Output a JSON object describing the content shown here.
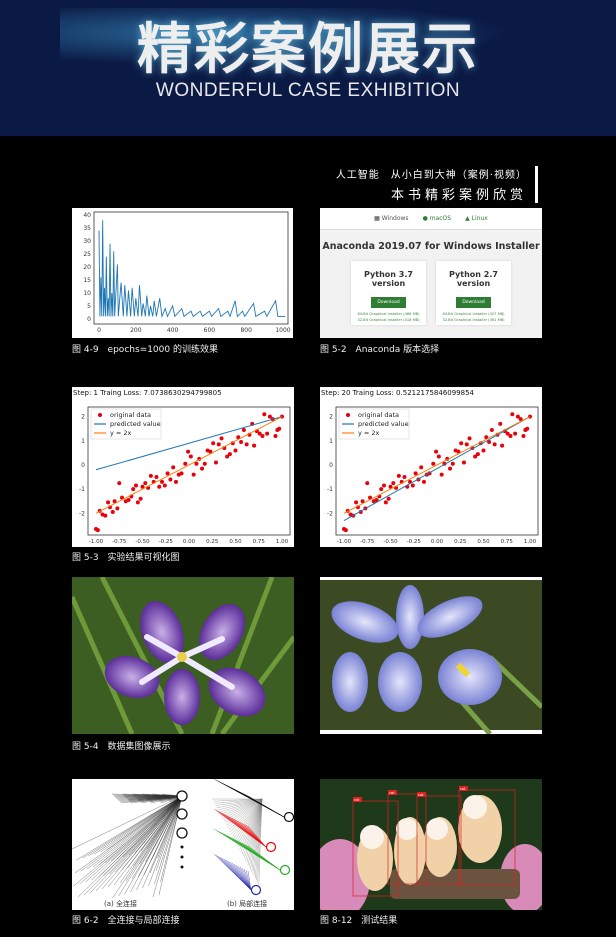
{
  "header": {
    "title": "精彩案例展示",
    "subtitle": "WONDERFUL CASE EXHIBITION",
    "bg_color": "#0b1a45"
  },
  "tagline": {
    "line1": "人工智能　从小白到大神（案例·视频）",
    "line2": "本书精彩案例欣赏"
  },
  "figures": [
    {
      "caption": "图 4-9　epochs=1000 的训练效果"
    },
    {
      "caption": "图 5-2　Anaconda 版本选择"
    },
    {
      "caption": "图 5-3　实验结果可视化图"
    },
    {
      "caption": "图 5-4　数据集图像展示"
    },
    {
      "caption": "图 6-2　全连接与局部连接",
      "sub_a": "(a) 全连接",
      "sub_b": "(b) 局部连接"
    },
    {
      "caption": "图 8-12　测试结果",
      "box_label": "cat"
    }
  ],
  "anaconda": {
    "tabs": [
      {
        "icon": "windows-icon",
        "label": "Windows"
      },
      {
        "icon": "apple-icon",
        "label": "macOS"
      },
      {
        "icon": "linux-icon",
        "label": "Linux"
      }
    ],
    "title": "Anaconda 2019.07 for Windows Installer",
    "cards": [
      {
        "title": "Python 3.7 version",
        "button": "Download",
        "links": [
          "64-Bit Graphical Installer (486 MB)",
          "32-Bit Graphical Installer (418 MB)"
        ]
      },
      {
        "title": "Python 2.7 version",
        "button": "Download",
        "links": [
          "64-Bit Graphical Installer (427 MB)",
          "32-Bit Graphical Installer (361 MB)"
        ]
      }
    ],
    "accent": "#2e7d32"
  },
  "chart_data": [
    {
      "type": "line",
      "xlim": [
        0,
        1000
      ],
      "ylim": [
        0,
        40
      ],
      "xticks": [
        0,
        200,
        400,
        600,
        800,
        1000
      ],
      "yticks": [
        0,
        5,
        10,
        15,
        20,
        25,
        30,
        35,
        40
      ],
      "color": "#1f77b4",
      "x": [
        0,
        10,
        20,
        30,
        40,
        50,
        60,
        70,
        80,
        100,
        120,
        140,
        160,
        180,
        200,
        220,
        240,
        260,
        280,
        300,
        330,
        360,
        400,
        450,
        500,
        550,
        600,
        650,
        700,
        740,
        780,
        840,
        900,
        960,
        1000
      ],
      "y": [
        34,
        16,
        38,
        12,
        24,
        8,
        29,
        10,
        26,
        21,
        14,
        13,
        11,
        12,
        8,
        13,
        6,
        9,
        5,
        7,
        8,
        4,
        5,
        4,
        3,
        3,
        3,
        4,
        3,
        7,
        3,
        6,
        3,
        7,
        1
      ]
    },
    {
      "type": "scatter",
      "title": "Step:  1 Traing Loss:  7.073863029479980​5",
      "xlim": [
        -1,
        1
      ],
      "ylim": [
        -2.9,
        2.4
      ],
      "xticks": [
        "-1.00",
        "-0.75",
        "-0.50",
        "-0.25",
        "0.00",
        "0.25",
        "0.50",
        "0.75",
        "1.00"
      ],
      "yticks": [
        -2,
        -1,
        0,
        1,
        2
      ],
      "legend": [
        "original data",
        "predicted value",
        "y = 2x"
      ],
      "legend_position": "top-left",
      "predicted": [
        [
          -1,
          -0.2
        ],
        [
          1,
          2.0
        ]
      ],
      "reference": [
        [
          -1,
          -2
        ],
        [
          1,
          2
        ]
      ]
    },
    {
      "type": "scatter",
      "title": "Step:  20 Traing Loss:  0.5212175846099854",
      "xlim": [
        -1,
        1
      ],
      "ylim": [
        -2.9,
        2.4
      ],
      "xticks": [
        "-1.00",
        "-0.75",
        "-0.50",
        "-0.25",
        "0.00",
        "0.25",
        "0.50",
        "0.75",
        "1.00"
      ],
      "yticks": [
        -2,
        -1,
        0,
        1,
        2
      ],
      "legend": [
        "original data",
        "predicted value",
        "y = 2x"
      ],
      "legend_position": "top-left",
      "predicted": [
        [
          -1,
          -2.3
        ],
        [
          1,
          2.0
        ]
      ],
      "reference": [
        [
          -1,
          -2
        ],
        [
          1,
          2
        ]
      ]
    }
  ],
  "scatter_points": [
    [
      -1,
      -2.65
    ],
    [
      -0.98,
      -2.7
    ],
    [
      -0.96,
      -1.9
    ],
    [
      -0.93,
      -2.05
    ],
    [
      -0.9,
      -2.1
    ],
    [
      -0.87,
      -1.55
    ],
    [
      -0.85,
      -1.75
    ],
    [
      -0.82,
      -1.95
    ],
    [
      -0.8,
      -1.5
    ],
    [
      -0.77,
      -1.8
    ],
    [
      -0.75,
      -0.75
    ],
    [
      -0.72,
      -1.35
    ],
    [
      -0.68,
      -1.5
    ],
    [
      -0.65,
      -1.45
    ],
    [
      -0.62,
      -1.3
    ],
    [
      -0.6,
      -1.0
    ],
    [
      -0.57,
      -0.85
    ],
    [
      -0.55,
      -1.55
    ],
    [
      -0.52,
      -1.4
    ],
    [
      -0.5,
      -0.9
    ],
    [
      -0.47,
      -0.75
    ],
    [
      -0.44,
      -0.95
    ],
    [
      -0.41,
      -0.45
    ],
    [
      -0.38,
      -0.7
    ],
    [
      -0.35,
      -0.5
    ],
    [
      -0.32,
      -0.9
    ],
    [
      -0.29,
      -0.7
    ],
    [
      -0.26,
      -0.85
    ],
    [
      -0.23,
      -0.35
    ],
    [
      -0.2,
      -0.6
    ],
    [
      -0.17,
      -0.1
    ],
    [
      -0.14,
      -0.7
    ],
    [
      -0.11,
      -0.4
    ],
    [
      -0.08,
      -0.35
    ],
    [
      -0.04,
      0.05
    ],
    [
      -0.01,
      0.55
    ],
    [
      0.02,
      0.35
    ],
    [
      0.05,
      -0.4
    ],
    [
      0.08,
      0.05
    ],
    [
      0.11,
      0.25
    ],
    [
      0.14,
      -0.15
    ],
    [
      0.17,
      0.05
    ],
    [
      0.2,
      0.6
    ],
    [
      0.23,
      0.55
    ],
    [
      0.26,
      0.9
    ],
    [
      0.29,
      0.1
    ],
    [
      0.32,
      0.85
    ],
    [
      0.35,
      1.1
    ],
    [
      0.38,
      0.7
    ],
    [
      0.41,
      0.35
    ],
    [
      0.44,
      0.45
    ],
    [
      0.47,
      0.9
    ],
    [
      0.5,
      0.6
    ],
    [
      0.53,
      1.15
    ],
    [
      0.56,
      0.95
    ],
    [
      0.59,
      1.45
    ],
    [
      0.62,
      0.85
    ],
    [
      0.65,
      1.25
    ],
    [
      0.68,
      1.7
    ],
    [
      0.7,
      0.8
    ],
    [
      0.73,
      1.4
    ],
    [
      0.76,
      1.3
    ],
    [
      0.79,
      1.2
    ],
    [
      0.81,
      2.1
    ],
    [
      0.84,
      1.3
    ],
    [
      0.87,
      2.0
    ],
    [
      0.9,
      1.9
    ],
    [
      0.93,
      1.2
    ],
    [
      0.95,
      1.45
    ],
    [
      0.97,
      1.5
    ],
    [
      1,
      2.0
    ]
  ]
}
